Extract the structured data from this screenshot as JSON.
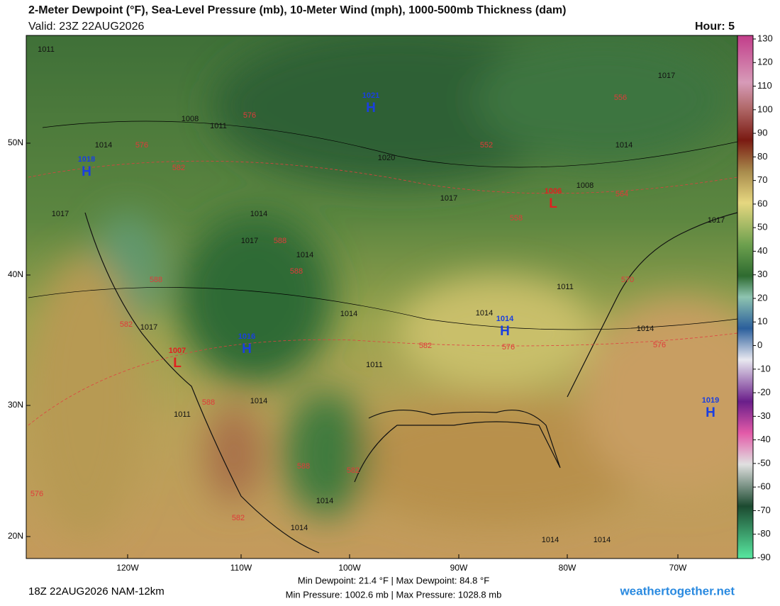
{
  "header": {
    "title": "2-Meter Dewpoint (°F), Sea-Level Pressure (mb), 10-Meter Wind (mph), 1000-500mb Thickness (dam)",
    "valid": "Valid: 23Z 22AUG2026",
    "hour": "Hour: 5"
  },
  "latitude_labels": [
    "50N",
    "40N",
    "30N",
    "20N"
  ],
  "longitude_labels": [
    "120W",
    "110W",
    "100W",
    "90W",
    "80W",
    "70W"
  ],
  "pressure_centers": [
    {
      "letter": "H",
      "value": "1021"
    },
    {
      "letter": "H",
      "value": "1018"
    },
    {
      "letter": "L",
      "value": "1006"
    },
    {
      "letter": "H",
      "value": "1014"
    },
    {
      "letter": "H",
      "value": "1016"
    },
    {
      "letter": "L",
      "value": "1007"
    },
    {
      "letter": "H",
      "value": "1019"
    }
  ],
  "isobar_labels": [
    "1011",
    "1017",
    "1008",
    "1011",
    "1014",
    "1020",
    "1014",
    "1008",
    "1017",
    "1017",
    "1017",
    "1014",
    "1017",
    "1014",
    "1011",
    "1014",
    "1014",
    "1017",
    "1014",
    "1011",
    "1011",
    "1014",
    "1014",
    "1014",
    "1014",
    "1014"
  ],
  "thickness_labels": [
    "556",
    "576",
    "576",
    "552",
    "582",
    "564",
    "558",
    "588",
    "588",
    "570",
    "588",
    "582",
    "576",
    "576",
    "582",
    "588",
    "588",
    "582",
    "576",
    "582"
  ],
  "colorbar_ticks": [
    "130",
    "120",
    "110",
    "100",
    "90",
    "80",
    "70",
    "60",
    "50",
    "40",
    "30",
    "20",
    "10",
    "0",
    "-10",
    "-20",
    "-30",
    "-40",
    "-50",
    "-60",
    "-70",
    "-80",
    "-90"
  ],
  "footer": {
    "run": "18Z 22AUG2026 NAM-12km",
    "dewpoint_range": "Min Dewpoint: 21.4 °F | Max Dewpoint: 84.8 °F",
    "pressure_range": "Min Pressure: 1002.6 mb | Max Pressure: 1028.8 mb",
    "site": "weathertogether.net"
  }
}
